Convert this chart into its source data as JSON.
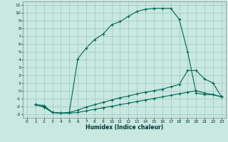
{
  "xlabel": "Humidex (Indice chaleur)",
  "bg_color": "#c8e8e0",
  "grid_color": "#a0c8c0",
  "line_color": "#006655",
  "xlim": [
    -0.5,
    23.5
  ],
  "ylim": [
    -3.5,
    11.5
  ],
  "xticks": [
    0,
    1,
    2,
    3,
    4,
    5,
    6,
    7,
    8,
    9,
    10,
    11,
    12,
    13,
    14,
    15,
    16,
    17,
    18,
    19,
    20,
    21,
    22,
    23
  ],
  "yticks": [
    -3,
    -2,
    -1,
    0,
    1,
    2,
    3,
    4,
    5,
    6,
    7,
    8,
    9,
    10,
    11
  ],
  "curve1_x": [
    1,
    2,
    3,
    4,
    5,
    6,
    7,
    8,
    9,
    10,
    11,
    12,
    13,
    14,
    15,
    16,
    17,
    18,
    19,
    20,
    21,
    22,
    23
  ],
  "curve1_y": [
    -1.8,
    -1.9,
    -2.8,
    -2.9,
    -2.8,
    4.1,
    5.5,
    6.6,
    7.3,
    8.5,
    8.9,
    9.6,
    10.2,
    10.5,
    10.6,
    10.6,
    10.6,
    9.2,
    5.0,
    -0.3,
    -0.5,
    -0.5,
    -0.8
  ],
  "curve2_x": [
    1,
    2,
    3,
    4,
    5,
    6,
    7,
    8,
    9,
    10,
    11,
    12,
    13,
    14,
    15,
    16,
    17,
    18,
    19,
    20,
    21,
    22,
    23
  ],
  "curve2_y": [
    -1.8,
    -2.1,
    -2.8,
    -2.9,
    -2.8,
    -2.5,
    -2.1,
    -1.8,
    -1.5,
    -1.2,
    -0.9,
    -0.7,
    -0.4,
    -0.2,
    0.0,
    0.2,
    0.5,
    0.8,
    2.6,
    2.6,
    1.5,
    1.0,
    -0.8
  ],
  "curve3_x": [
    1,
    2,
    3,
    4,
    5,
    6,
    7,
    8,
    9,
    10,
    11,
    12,
    13,
    14,
    15,
    16,
    17,
    18,
    19,
    20,
    21,
    22,
    23
  ],
  "curve3_y": [
    -1.8,
    -2.1,
    -2.8,
    -2.9,
    -2.9,
    -2.8,
    -2.6,
    -2.4,
    -2.2,
    -2.0,
    -1.8,
    -1.6,
    -1.4,
    -1.2,
    -1.0,
    -0.8,
    -0.6,
    -0.4,
    -0.2,
    0.0,
    -0.3,
    -0.5,
    -0.8
  ]
}
